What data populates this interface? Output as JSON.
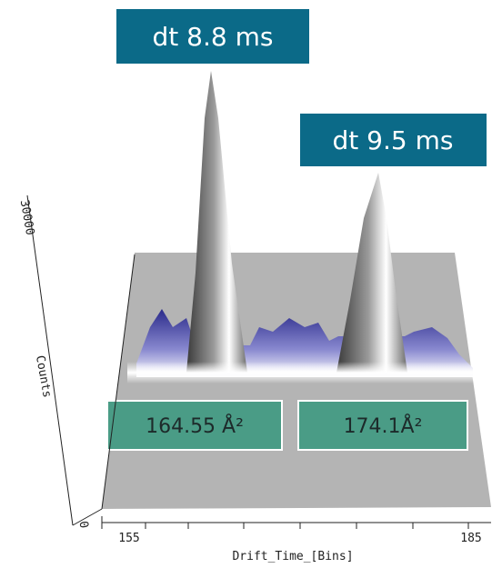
{
  "labels": {
    "peak_1": "dt 8.8 ms",
    "peak_2": "dt 9.5 ms",
    "ccs_1": "164.55 Å²",
    "ccs_2": "174.1Å²"
  },
  "axes": {
    "x_title": "Drift_Time_[Bins]",
    "x_start": "155",
    "x_end": "185",
    "z_title": "Counts",
    "z_max": "30000",
    "z_min": "0"
  }
}
